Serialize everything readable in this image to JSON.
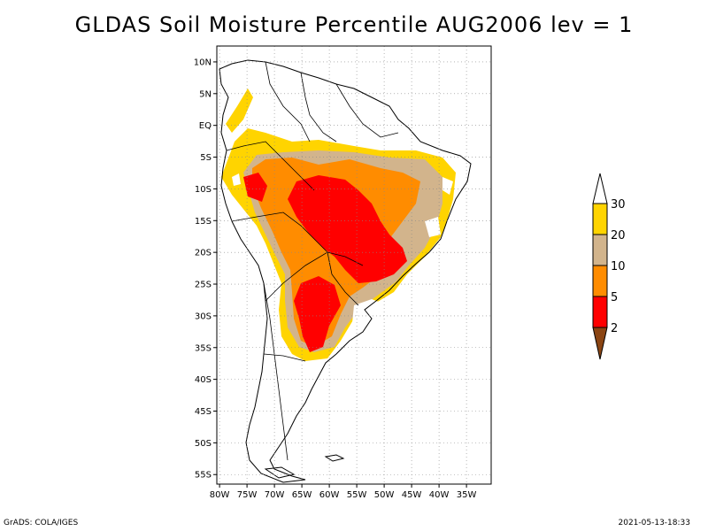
{
  "title": "GLDAS Soil Moisture Percentile AUG2006 lev = 1",
  "footer": {
    "left": "GrADS: COLA/IGES",
    "right": "2021-05-13-18:33"
  },
  "map": {
    "lat_labels": [
      "10N",
      "5N",
      "EQ",
      "5S",
      "10S",
      "15S",
      "20S",
      "25S",
      "30S",
      "35S",
      "40S",
      "45S",
      "50S",
      "55S"
    ],
    "lat_values": [
      10,
      5,
      0,
      -5,
      -10,
      -15,
      -20,
      -25,
      -30,
      -35,
      -40,
      -45,
      -50,
      -55
    ],
    "lon_labels": [
      "80W",
      "75W",
      "70W",
      "65W",
      "60W",
      "55W",
      "50W",
      "45W",
      "40W",
      "35W"
    ],
    "lon_values": [
      -80,
      -75,
      -70,
      -65,
      -60,
      -55,
      -50,
      -45,
      -40,
      -35
    ],
    "lon_range": [
      -80.5,
      -30.5
    ],
    "lat_range": [
      -56.5,
      12.5
    ],
    "grid": true
  },
  "colorbar": {
    "labels": [
      "30",
      "20",
      "10",
      "5",
      "2"
    ],
    "colors": {
      "above_30": "#ffffff",
      "20_30": "#ffd400",
      "10_20": "#d2b48c",
      "5_10": "#ff8c00",
      "2_5": "#ff0000",
      "below_2": "#8b4513"
    }
  }
}
